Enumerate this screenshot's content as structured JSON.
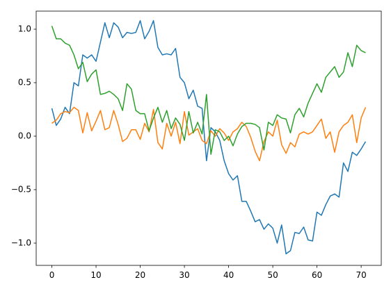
{
  "chart_data": {
    "type": "line",
    "x": [
      0,
      1,
      2,
      3,
      4,
      5,
      6,
      7,
      8,
      9,
      10,
      11,
      12,
      13,
      14,
      15,
      16,
      17,
      18,
      19,
      20,
      21,
      22,
      23,
      24,
      25,
      26,
      27,
      28,
      29,
      30,
      31,
      32,
      33,
      34,
      35,
      36,
      37,
      38,
      39,
      40,
      41,
      42,
      43,
      44,
      45,
      46,
      47,
      48,
      49,
      50,
      51,
      52,
      53,
      54,
      55,
      56,
      57,
      58,
      59,
      60,
      61,
      62,
      63,
      64,
      65,
      66,
      67,
      68,
      69,
      70,
      71
    ],
    "series": [
      {
        "color": "#1f77b4",
        "values": [
          0.26,
          0.1,
          0.16,
          0.27,
          0.21,
          0.5,
          0.47,
          0.76,
          0.73,
          0.76,
          0.7,
          0.88,
          1.06,
          0.92,
          1.06,
          1.02,
          0.92,
          0.97,
          0.96,
          0.97,
          1.08,
          0.91,
          0.98,
          1.08,
          0.83,
          0.76,
          0.77,
          0.76,
          0.82,
          0.55,
          0.5,
          0.35,
          0.43,
          0.28,
          0.26,
          -0.23,
          0.08,
          0.04,
          -0.04,
          -0.23,
          -0.35,
          -0.41,
          -0.37,
          -0.61,
          -0.61,
          -0.7,
          -0.8,
          -0.78,
          -0.87,
          -0.82,
          -0.86,
          -1.0,
          -0.83,
          -1.1,
          -1.07,
          -0.9,
          -0.91,
          -0.85,
          -0.97,
          -0.98,
          -0.71,
          -0.74,
          -0.64,
          -0.56,
          -0.54,
          -0.57,
          -0.25,
          -0.33,
          -0.15,
          -0.18,
          -0.12,
          -0.05
        ]
      },
      {
        "color": "#ff7f0e",
        "values": [
          0.12,
          0.15,
          0.21,
          0.23,
          0.22,
          0.27,
          0.24,
          0.03,
          0.22,
          0.05,
          0.14,
          0.24,
          0.06,
          0.08,
          0.24,
          0.11,
          -0.05,
          -0.02,
          0.06,
          0.06,
          -0.03,
          0.12,
          0.04,
          0.25,
          -0.06,
          -0.12,
          0.12,
          0.0,
          0.13,
          -0.07,
          0.23,
          0.01,
          0.04,
          0.07,
          -0.04,
          -0.07,
          0.05,
          0.0,
          0.07,
          0.03,
          -0.04,
          0.04,
          0.07,
          0.13,
          0.09,
          -0.01,
          -0.14,
          -0.23,
          -0.05,
          0.04,
          0.0,
          0.15,
          -0.08,
          -0.16,
          -0.06,
          -0.1,
          0.02,
          0.04,
          0.02,
          0.04,
          0.1,
          0.16,
          -0.02,
          0.04,
          -0.15,
          0.04,
          0.1,
          0.13,
          0.2,
          -0.06,
          0.17,
          0.27
        ]
      },
      {
        "color": "#2ca02c",
        "values": [
          1.03,
          0.91,
          0.91,
          0.87,
          0.85,
          0.76,
          0.63,
          0.69,
          0.51,
          0.58,
          0.62,
          0.39,
          0.4,
          0.42,
          0.39,
          0.35,
          0.24,
          0.49,
          0.44,
          0.24,
          0.21,
          0.21,
          0.05,
          0.17,
          0.27,
          0.13,
          0.24,
          0.07,
          0.17,
          0.11,
          -0.04,
          0.23,
          0.03,
          0.13,
          0.02,
          0.39,
          -0.17,
          0.06,
          0.04,
          -0.04,
          0.0,
          -0.09,
          0.02,
          0.09,
          0.12,
          0.12,
          0.11,
          0.08,
          -0.13,
          0.13,
          0.1,
          0.2,
          0.17,
          0.16,
          0.03,
          0.2,
          0.26,
          0.18,
          0.31,
          0.4,
          0.49,
          0.41,
          0.55,
          0.6,
          0.65,
          0.55,
          0.6,
          0.78,
          0.65,
          0.85,
          0.8,
          0.78
        ]
      }
    ],
    "xlim": [
      -3.55,
      74.55
    ],
    "xticks": [
      0,
      10,
      20,
      30,
      40,
      50,
      60,
      70
    ],
    "ylim": [
      -1.208,
      1.169
    ],
    "yticks": [
      {
        "value": -1.0,
        "label": "−1.0"
      },
      {
        "value": -0.5,
        "label": "−0.5"
      },
      {
        "value": 0.0,
        "label": "0.0"
      },
      0.5,
      {
        "value": 1.0,
        "label": "1.0"
      }
    ]
  }
}
